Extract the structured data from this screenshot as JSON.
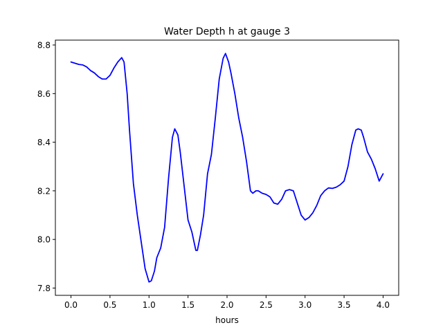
{
  "chart_data": {
    "type": "line",
    "title": "Water Depth h at gauge 3",
    "xlabel": "hours",
    "ylabel": "",
    "xlim": [
      -0.2,
      4.2
    ],
    "ylim": [
      7.77,
      8.82
    ],
    "xticks": [
      0.0,
      0.5,
      1.0,
      1.5,
      2.0,
      2.5,
      3.0,
      3.5,
      4.0
    ],
    "xtick_labels": [
      "0.0",
      "0.5",
      "1.0",
      "1.5",
      "2.0",
      "2.5",
      "3.0",
      "3.5",
      "4.0"
    ],
    "yticks": [
      7.8,
      8.0,
      8.2,
      8.4,
      8.6,
      8.8
    ],
    "ytick_labels": [
      "7.8",
      "8.0",
      "8.2",
      "8.4",
      "8.6",
      "8.8"
    ],
    "grid": false,
    "series": [
      {
        "color": "#0000ff",
        "x": [
          0.0,
          0.05,
          0.1,
          0.15,
          0.2,
          0.25,
          0.3,
          0.35,
          0.4,
          0.45,
          0.5,
          0.55,
          0.6,
          0.65,
          0.68,
          0.72,
          0.75,
          0.8,
          0.85,
          0.9,
          0.95,
          1.0,
          1.03,
          1.07,
          1.1,
          1.15,
          1.2,
          1.25,
          1.3,
          1.33,
          1.37,
          1.4,
          1.45,
          1.5,
          1.55,
          1.6,
          1.62,
          1.66,
          1.7,
          1.75,
          1.8,
          1.85,
          1.9,
          1.95,
          1.98,
          2.02,
          2.05,
          2.1,
          2.15,
          2.2,
          2.25,
          2.3,
          2.33,
          2.37,
          2.4,
          2.45,
          2.5,
          2.55,
          2.6,
          2.65,
          2.7,
          2.75,
          2.8,
          2.85,
          2.9,
          2.95,
          3.0,
          3.05,
          3.1,
          3.15,
          3.2,
          3.25,
          3.3,
          3.35,
          3.4,
          3.45,
          3.5,
          3.55,
          3.6,
          3.65,
          3.68,
          3.72,
          3.75,
          3.8,
          3.85,
          3.9,
          3.95,
          4.0
        ],
        "values": [
          8.73,
          8.725,
          8.72,
          8.718,
          8.71,
          8.695,
          8.685,
          8.67,
          8.66,
          8.66,
          8.675,
          8.705,
          8.73,
          8.748,
          8.73,
          8.6,
          8.45,
          8.23,
          8.1,
          7.99,
          7.88,
          7.825,
          7.83,
          7.87,
          7.925,
          7.965,
          8.05,
          8.25,
          8.42,
          8.455,
          8.43,
          8.36,
          8.22,
          8.08,
          8.03,
          7.955,
          7.955,
          8.02,
          8.1,
          8.27,
          8.35,
          8.5,
          8.66,
          8.745,
          8.765,
          8.73,
          8.685,
          8.6,
          8.5,
          8.42,
          8.32,
          8.2,
          8.19,
          8.2,
          8.2,
          8.19,
          8.185,
          8.175,
          8.15,
          8.145,
          8.165,
          8.2,
          8.205,
          8.2,
          8.15,
          8.1,
          8.08,
          8.09,
          8.11,
          8.14,
          8.18,
          8.2,
          8.212,
          8.21,
          8.215,
          8.225,
          8.24,
          8.3,
          8.39,
          8.45,
          8.455,
          8.45,
          8.42,
          8.36,
          8.33,
          8.29,
          8.24,
          8.27
        ]
      }
    ]
  }
}
